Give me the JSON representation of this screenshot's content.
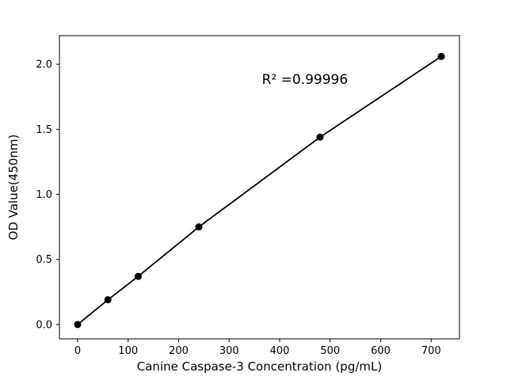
{
  "chart_data": {
    "type": "line",
    "x": [
      0,
      60,
      120,
      240,
      480,
      720
    ],
    "y": [
      0.0,
      0.19,
      0.37,
      0.75,
      1.44,
      2.06
    ],
    "xlabel": "Canine Caspase-3 Concentration (pg/mL)",
    "ylabel": "OD Value(450nm)",
    "annotation": {
      "text": "R² =0.99996",
      "x": 450,
      "y": 1.85
    },
    "xlim": [
      -36,
      756
    ],
    "ylim": [
      -0.11,
      2.22
    ],
    "xticks": [
      0,
      100,
      200,
      300,
      400,
      500,
      600,
      700
    ],
    "yticks": [
      0.0,
      0.5,
      1.0,
      1.5,
      2.0
    ],
    "line_color": "#000000",
    "marker_color": "#000000",
    "background": "#ffffff",
    "grid": false,
    "legend": null,
    "title": ""
  }
}
